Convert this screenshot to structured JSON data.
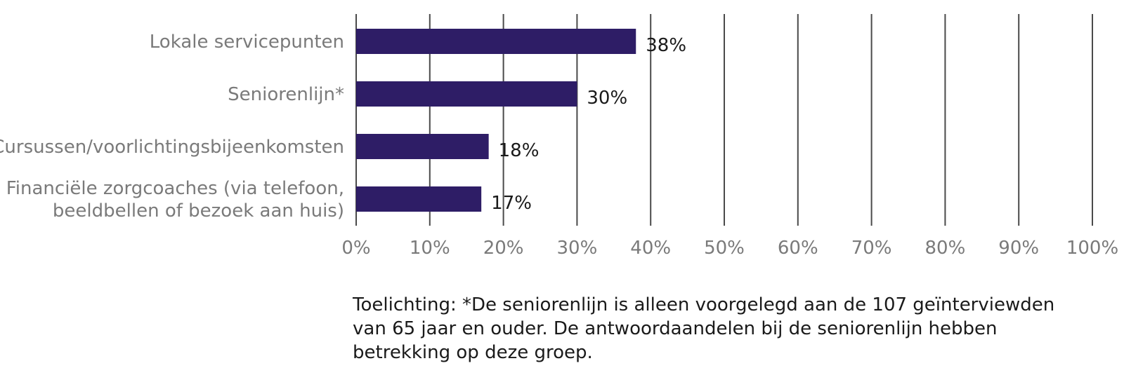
{
  "chart_data": {
    "type": "bar",
    "orientation": "horizontal",
    "categories": [
      [
        "Lokale servicepunten"
      ],
      [
        "Seniorenlijn*"
      ],
      [
        "Cursussen/voorlichtingsbijeenkomsten"
      ],
      [
        "Financiële zorgcoaches (via telefoon,",
        "beeldbellen of bezoek aan huis)"
      ]
    ],
    "values": [
      38,
      30,
      18,
      17
    ],
    "value_labels": [
      "38%",
      "30%",
      "18%",
      "17%"
    ],
    "xlim": [
      0,
      100
    ],
    "x_ticks": [
      0,
      10,
      20,
      30,
      40,
      50,
      60,
      70,
      80,
      90,
      100
    ],
    "x_tick_labels": [
      "0%",
      "10%",
      "20%",
      "30%",
      "40%",
      "50%",
      "60%",
      "70%",
      "80%",
      "90%",
      "100%"
    ],
    "grid": true,
    "bar_color": "#2e1d66",
    "grid_color": "#4a4a4a"
  },
  "note": {
    "line1": "Toelichting: *De seniorenlijn is alleen voorgelegd aan de 107 geïnterviewden",
    "line2": "van 65 jaar en ouder. De antwoordaandelen bij de seniorenlijn hebben",
    "line3": "betrekking op deze groep."
  }
}
